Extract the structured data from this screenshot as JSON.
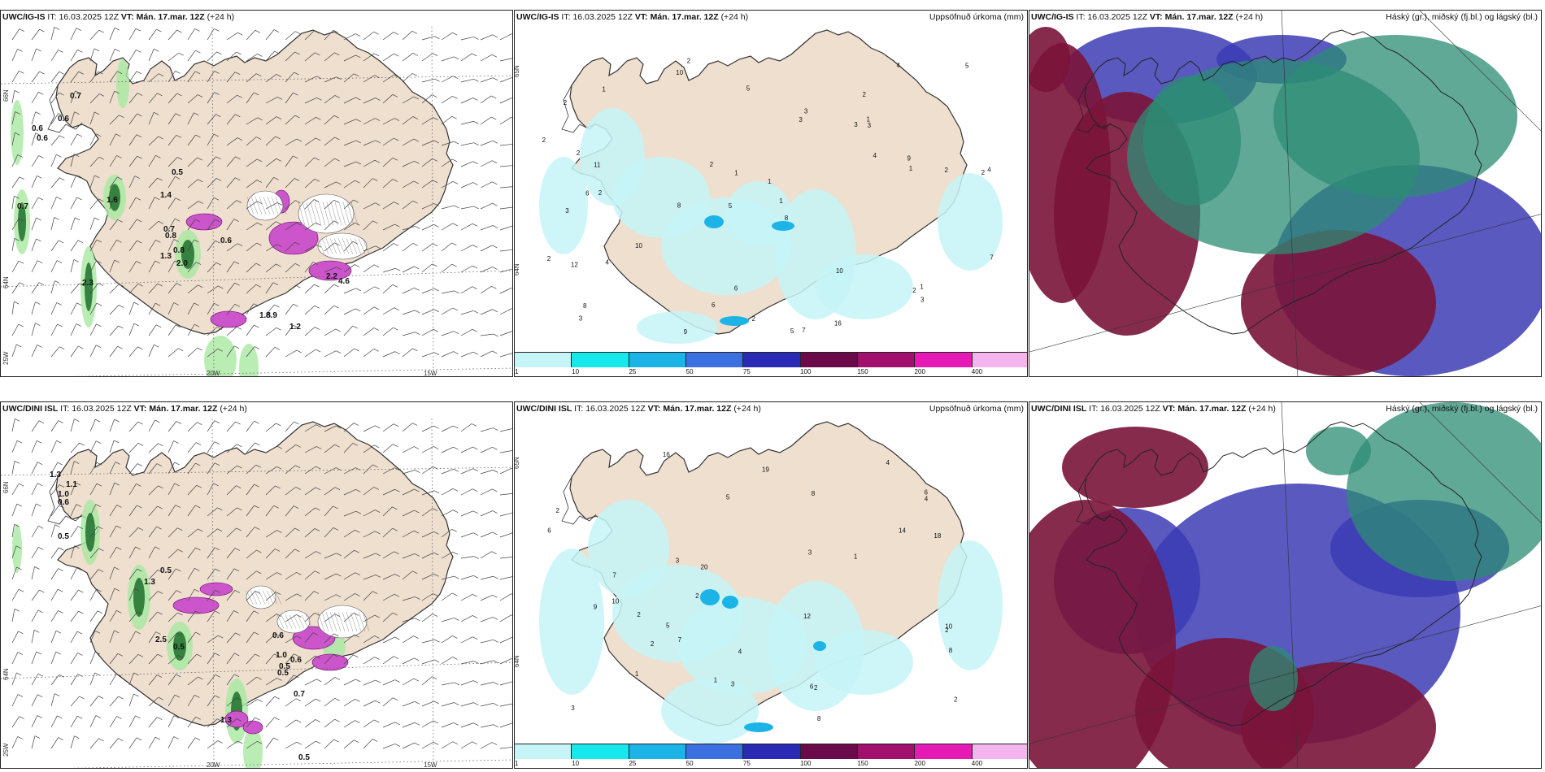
{
  "colorbar": {
    "ticks": [
      "1",
      "10",
      "25",
      "50",
      "75",
      "100",
      "150",
      "200",
      "400"
    ],
    "colors": [
      "#c5f5f7",
      "#17e8ee",
      "#1cb4e6",
      "#3c6fe0",
      "#2a2ab4",
      "#6a0a4a",
      "#a0106c",
      "#e61ab4",
      "#f4b4ee"
    ]
  },
  "rows": [
    {
      "model": "UWC/IG-IS",
      "it_label": "IT:",
      "it_value": "16.03.2025 12Z",
      "vt_label": "VT:",
      "vt_value": "Mán. 17.mar. 12Z",
      "lead": "(+24 h)"
    },
    {
      "model": "UWC/DINI ISL",
      "it_label": "IT:",
      "it_value": "16.03.2025 12Z",
      "vt_label": "VT:",
      "vt_value": "Mán. 17.mar. 12Z",
      "lead": "(+24 h)"
    }
  ],
  "panel_titles": {
    "precip": "Uppsöfnuð úrkoma (mm)",
    "clouds": "Háský (gr.), miðský (fj.bl.) og lágský (bl.)"
  },
  "map_labels": {
    "lat66": "66N",
    "lat64": "64N",
    "lat65": "65N",
    "lon20": "20W",
    "lon15": "15W",
    "lon25": "25W"
  },
  "wind_values_top": [
    "0.7",
    "0.6",
    "0.6",
    "0.6",
    "0.7",
    "0.5",
    "1.6",
    "1.4",
    "0.7",
    "0.8",
    "1.3",
    "0.8",
    "0.6",
    "2.0",
    "2.3",
    "1.8",
    "8.9",
    "1.2",
    "2.2",
    "4.6"
  ],
  "wind_values_bottom": [
    "1.3",
    "1.0",
    "0.6",
    "1.1",
    "0.5",
    "1.3",
    "0.5",
    "2.5",
    "0.5",
    "0.6",
    "1.0",
    "0.5",
    "0.6",
    "0.5",
    "0.7",
    "1.3",
    "0.5"
  ],
  "precip_values_top": [
    "2",
    "2",
    "2",
    "5",
    "8",
    "2",
    "2",
    "3",
    "3",
    "3",
    "1",
    "3",
    "10",
    "8",
    "5",
    "7",
    "6",
    "4",
    "4",
    "10",
    "11",
    "6",
    "4",
    "2",
    "2",
    "2",
    "1",
    "1",
    "1",
    "12",
    "2",
    "3",
    "4",
    "2",
    "10",
    "7",
    "9",
    "6",
    "5",
    "5",
    "8",
    "9",
    "16",
    "1",
    "2",
    "3",
    "3",
    "1",
    "2",
    "1"
  ],
  "precip_values_bottom": [
    "2",
    "5",
    "6",
    "9",
    "7",
    "2",
    "3",
    "3",
    "10",
    "14",
    "8",
    "4",
    "8",
    "3",
    "20",
    "18",
    "19",
    "16",
    "10",
    "4",
    "6",
    "6",
    "8",
    "5",
    "12",
    "7",
    "3",
    "2",
    "2",
    "4",
    "2",
    "1",
    "1",
    "1",
    "2",
    "2"
  ],
  "colors": {
    "land": "#eedfcf",
    "sea": "#ffffff",
    "coast": "#333333",
    "hatch": "#555555",
    "cloud_high": "#2c8c74",
    "cloud_mid": "#3c3cb4",
    "cloud_low": "#7a1438"
  }
}
